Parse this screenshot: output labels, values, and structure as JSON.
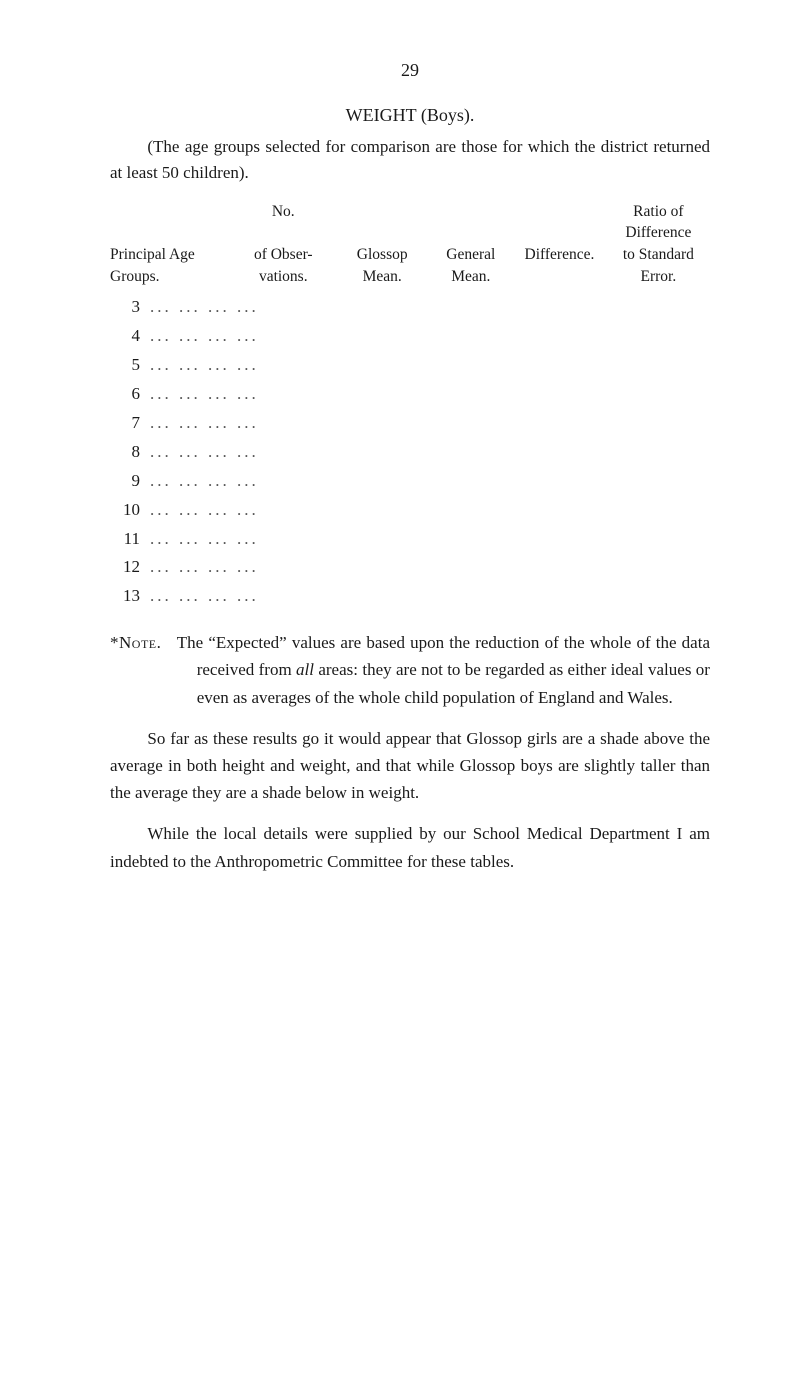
{
  "page_number": "29",
  "heading": "WEIGHT (Boys).",
  "intro": "(The age groups selected for comparison are those for which the district returned at least 50 children).",
  "table": {
    "headers": {
      "c1": "Principal Age Groups.",
      "c2_top": "No.",
      "c2": "of Obser- vations.",
      "c3": "Glossop Mean.",
      "c4": "General Mean.",
      "c5": "Difference.",
      "c6_top": "Ratio of Difference",
      "c6": "to Standard Error."
    },
    "row_numbers": [
      "3",
      "4",
      "5",
      "6",
      "7",
      "8",
      "9",
      "10",
      "11",
      "12",
      "13"
    ],
    "dots": "... ... ... ..."
  },
  "note": {
    "label": "*Note.",
    "text": "The “Expected” values are based upon the reduction of the whole of the data received from ",
    "em": "all",
    "text2": " areas: they are not to be regarded as either ideal values or even as averages of the whole child population of England and Wales."
  },
  "para1": "So far as these results go it would appear that Glossop girls are a shade above the average in both height and weight, and that while Glossop boys are slightly taller than the average they are a shade below in weight.",
  "para2": "While the local details were supplied by our School Medical Department I am indebted to the Anthropometric Committee for these tables."
}
